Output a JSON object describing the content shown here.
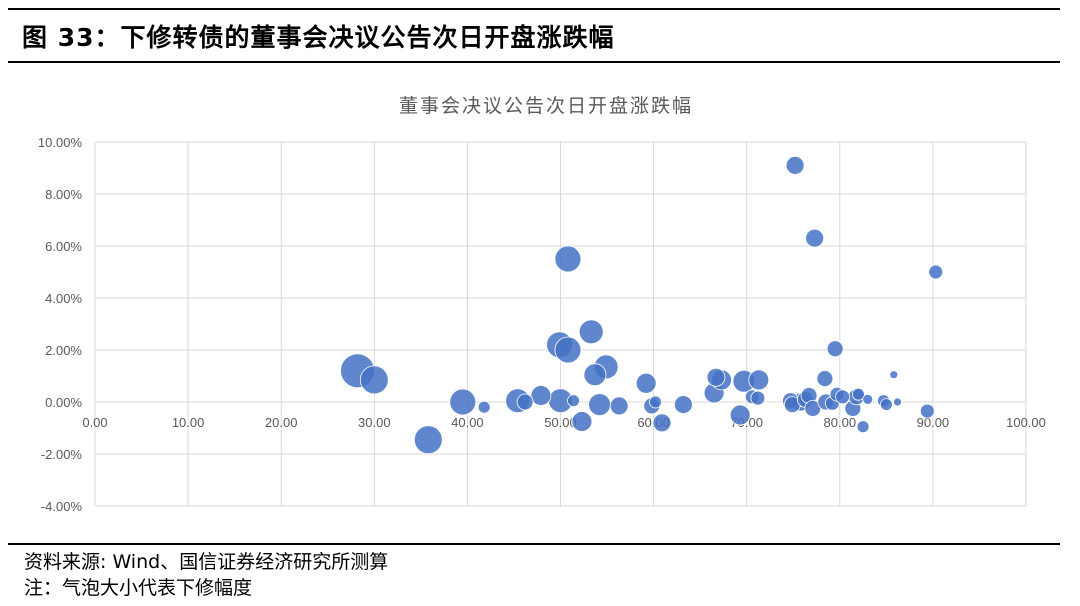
{
  "figure": {
    "title": "图 33：下修转债的董事会决议公告次日开盘涨跌幅",
    "source": "资料来源: Wind、国信证券经济研究所测算",
    "note": "注：气泡大小代表下修幅度"
  },
  "chart_data": {
    "type": "bubble",
    "title": "董事会决议公告次日开盘涨跌幅",
    "xlabel": "",
    "ylabel": "",
    "xlim": [
      0,
      100
    ],
    "ylim": [
      -4,
      10
    ],
    "x_ticks": [
      "0.00",
      "10.00",
      "20.00",
      "30.00",
      "40.00",
      "50.00",
      "60.00",
      "70.00",
      "80.00",
      "90.00",
      "100.00"
    ],
    "y_ticks": [
      "-4.00%",
      "-2.00%",
      "0.00%",
      "2.00%",
      "4.00%",
      "6.00%",
      "8.00%",
      "10.00%"
    ],
    "grid": true,
    "legend": "none",
    "color": "#4472C4",
    "points": [
      {
        "x": 28.2,
        "y": 1.2,
        "size": 17
      },
      {
        "x": 30.0,
        "y": 0.85,
        "size": 14
      },
      {
        "x": 35.8,
        "y": -1.45,
        "size": 14
      },
      {
        "x": 39.5,
        "y": 0.0,
        "size": 13
      },
      {
        "x": 41.8,
        "y": -0.2,
        "size": 6
      },
      {
        "x": 45.4,
        "y": 0.05,
        "size": 12
      },
      {
        "x": 46.2,
        "y": 0.0,
        "size": 8
      },
      {
        "x": 47.9,
        "y": 0.25,
        "size": 10
      },
      {
        "x": 50.0,
        "y": 0.05,
        "size": 12
      },
      {
        "x": 49.9,
        "y": 2.2,
        "size": 13
      },
      {
        "x": 50.8,
        "y": 2.0,
        "size": 13
      },
      {
        "x": 50.8,
        "y": 5.5,
        "size": 13
      },
      {
        "x": 51.4,
        "y": 0.05,
        "size": 6
      },
      {
        "x": 52.3,
        "y": -0.75,
        "size": 10
      },
      {
        "x": 53.3,
        "y": 2.7,
        "size": 12
      },
      {
        "x": 53.7,
        "y": 1.05,
        "size": 11
      },
      {
        "x": 54.2,
        "y": -0.1,
        "size": 11
      },
      {
        "x": 54.9,
        "y": 1.35,
        "size": 12
      },
      {
        "x": 56.3,
        "y": -0.15,
        "size": 9
      },
      {
        "x": 59.2,
        "y": 0.72,
        "size": 10
      },
      {
        "x": 59.8,
        "y": -0.15,
        "size": 8
      },
      {
        "x": 60.2,
        "y": 0.0,
        "size": 6
      },
      {
        "x": 60.9,
        "y": -0.8,
        "size": 9
      },
      {
        "x": 63.2,
        "y": -0.1,
        "size": 9
      },
      {
        "x": 66.5,
        "y": 0.35,
        "size": 10
      },
      {
        "x": 66.7,
        "y": 0.95,
        "size": 9
      },
      {
        "x": 67.3,
        "y": 0.85,
        "size": 10
      },
      {
        "x": 69.3,
        "y": -0.5,
        "size": 10
      },
      {
        "x": 69.7,
        "y": 0.8,
        "size": 11
      },
      {
        "x": 70.6,
        "y": 0.2,
        "size": 7
      },
      {
        "x": 71.2,
        "y": 0.15,
        "size": 7
      },
      {
        "x": 71.3,
        "y": 0.85,
        "size": 10
      },
      {
        "x": 74.7,
        "y": 0.05,
        "size": 8
      },
      {
        "x": 74.9,
        "y": -0.1,
        "size": 8
      },
      {
        "x": 75.2,
        "y": 9.1,
        "size": 9
      },
      {
        "x": 75.8,
        "y": 0.0,
        "size": 9
      },
      {
        "x": 76.3,
        "y": 0.1,
        "size": 8
      },
      {
        "x": 76.7,
        "y": 0.25,
        "size": 8
      },
      {
        "x": 77.1,
        "y": -0.25,
        "size": 8
      },
      {
        "x": 77.3,
        "y": 6.3,
        "size": 9
      },
      {
        "x": 78.4,
        "y": 0.9,
        "size": 8
      },
      {
        "x": 78.5,
        "y": 0.0,
        "size": 8
      },
      {
        "x": 79.2,
        "y": -0.05,
        "size": 7
      },
      {
        "x": 79.5,
        "y": 2.05,
        "size": 8
      },
      {
        "x": 79.7,
        "y": 0.3,
        "size": 7
      },
      {
        "x": 80.3,
        "y": 0.2,
        "size": 7
      },
      {
        "x": 81.4,
        "y": -0.25,
        "size": 8
      },
      {
        "x": 81.8,
        "y": 0.2,
        "size": 8
      },
      {
        "x": 82.0,
        "y": 0.3,
        "size": 6
      },
      {
        "x": 82.5,
        "y": -0.95,
        "size": 6
      },
      {
        "x": 83.0,
        "y": 0.1,
        "size": 5
      },
      {
        "x": 84.7,
        "y": 0.05,
        "size": 6
      },
      {
        "x": 85.0,
        "y": -0.1,
        "size": 6
      },
      {
        "x": 85.8,
        "y": 1.05,
        "size": 4
      },
      {
        "x": 86.2,
        "y": 0.0,
        "size": 4
      },
      {
        "x": 89.4,
        "y": -0.35,
        "size": 7
      },
      {
        "x": 90.3,
        "y": 5.0,
        "size": 7
      }
    ]
  }
}
